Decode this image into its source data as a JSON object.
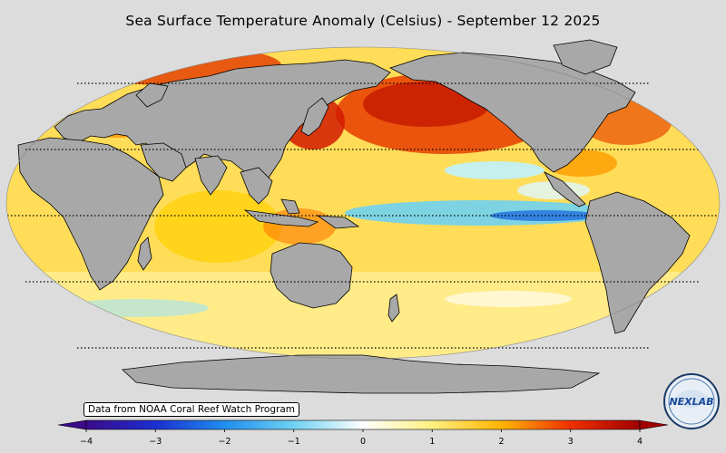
{
  "title": "Sea Surface Temperature Anomaly (Celsius) - September 12 2025",
  "credit": "Data from NOAA Coral Reef Watch Program",
  "logo_text": "NEXLAB",
  "colors": {
    "background": "#dcdcdc",
    "land": "#a8a8a8",
    "coastline": "#000000",
    "graticule": "#000000"
  },
  "colorbar": {
    "ticks": [
      "−4",
      "−3",
      "−2",
      "−1",
      "0",
      "1",
      "2",
      "3",
      "4"
    ],
    "values": [
      -4,
      -3,
      -2,
      -1,
      0,
      1,
      2,
      3,
      4
    ],
    "range": [
      -4,
      4
    ],
    "colors": [
      "#3b0a8a",
      "#1a2fd0",
      "#1f8ef0",
      "#6fd2f2",
      "#ffffff",
      "#fff080",
      "#ffb400",
      "#f03000",
      "#a00000"
    ]
  }
}
